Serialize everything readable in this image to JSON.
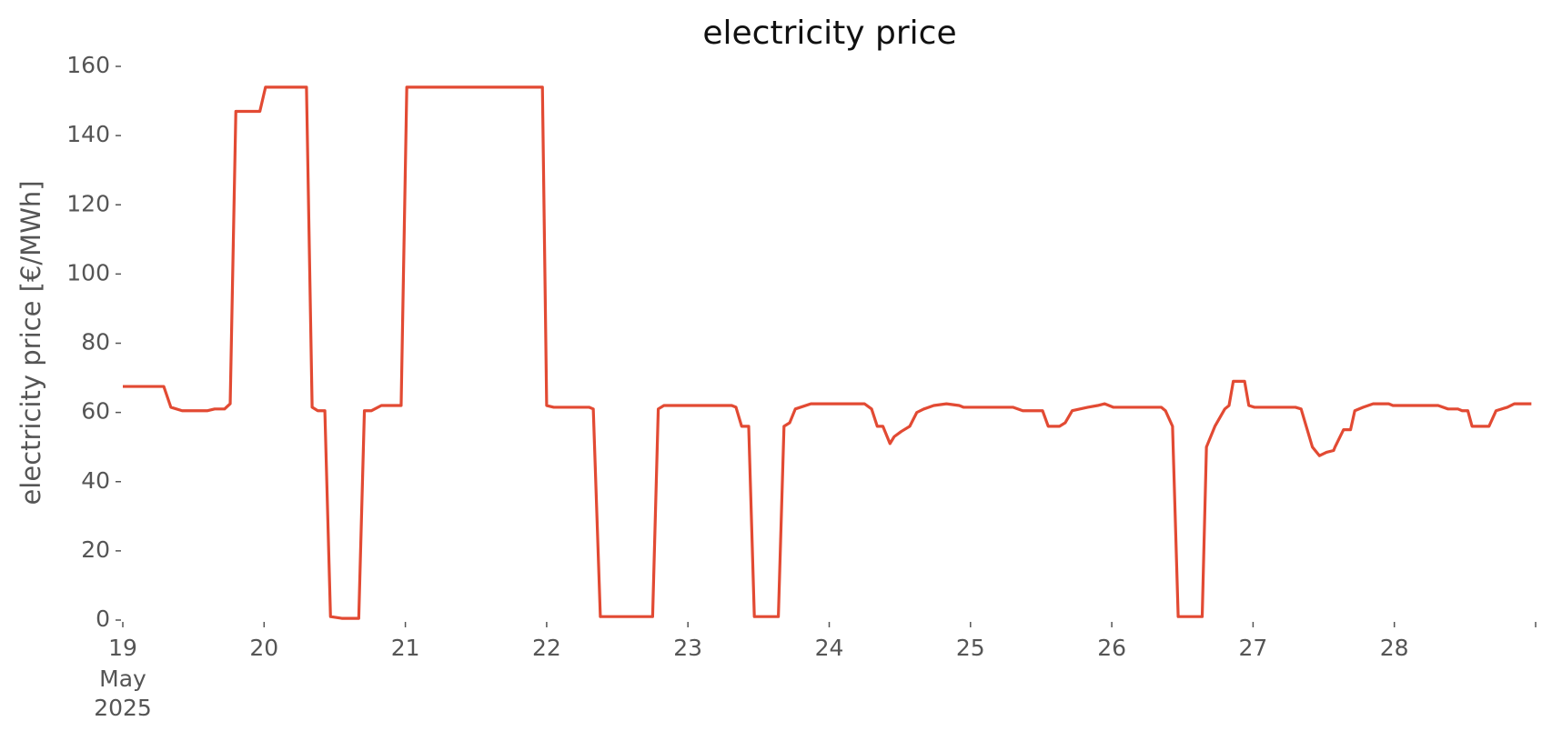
{
  "chart_data": {
    "type": "line",
    "title": "electricity price",
    "ylabel": "electricity price [€/MWh]",
    "x": [
      19.0,
      19.29,
      19.34,
      19.42,
      19.6,
      19.65,
      19.72,
      19.76,
      19.8,
      19.97,
      20.01,
      20.3,
      20.34,
      20.38,
      20.43,
      20.47,
      20.55,
      20.67,
      20.71,
      20.76,
      20.83,
      20.97,
      21.01,
      21.97,
      22.0,
      22.05,
      22.3,
      22.33,
      22.38,
      22.75,
      22.79,
      22.83,
      23.31,
      23.34,
      23.38,
      23.43,
      23.47,
      23.64,
      23.68,
      23.72,
      23.76,
      23.87,
      24.25,
      24.3,
      24.34,
      24.38,
      24.43,
      24.46,
      24.51,
      24.57,
      24.62,
      24.67,
      24.74,
      24.83,
      24.92,
      24.95,
      25.3,
      25.37,
      25.51,
      25.55,
      25.63,
      25.67,
      25.72,
      25.83,
      25.9,
      25.95,
      26.01,
      26.35,
      26.38,
      26.43,
      26.47,
      26.64,
      26.67,
      26.73,
      26.8,
      26.83,
      26.86,
      26.94,
      26.97,
      27.01,
      27.3,
      27.34,
      27.42,
      27.47,
      27.52,
      27.57,
      27.58,
      27.64,
      27.69,
      27.72,
      27.78,
      27.85,
      27.96,
      27.99,
      28.31,
      28.38,
      28.45,
      28.48,
      28.52,
      28.55,
      28.67,
      28.72,
      28.8,
      28.85,
      28.97
    ],
    "series": [
      {
        "name": "electricity price",
        "color": "#e24a33",
        "values": [
          67.5,
          67.5,
          61.5,
          60.5,
          60.5,
          61,
          61,
          62.5,
          147,
          147,
          154,
          154,
          61.5,
          60.5,
          60.5,
          1,
          0.5,
          0.5,
          60.5,
          60.5,
          62,
          62,
          154,
          154,
          62,
          61.5,
          61.5,
          61,
          1,
          1,
          61,
          62,
          62,
          61.5,
          56,
          56,
          1,
          1,
          56,
          57,
          61,
          62.5,
          62.5,
          61,
          56,
          56,
          51,
          53,
          54.5,
          56,
          60,
          61,
          62,
          62.5,
          62,
          61.5,
          61.5,
          60.5,
          60.5,
          56,
          56,
          57,
          60.5,
          61.5,
          62,
          62.5,
          61.5,
          61.5,
          60.5,
          56,
          1,
          1,
          50,
          56,
          61,
          62,
          69,
          69,
          62,
          61.5,
          61.5,
          61,
          50,
          47.5,
          48.5,
          49,
          50,
          55,
          55,
          60.5,
          61.5,
          62.5,
          62.5,
          62,
          62,
          61,
          61,
          60.5,
          60.5,
          56,
          56,
          60.5,
          61.5,
          62.5,
          62.5
        ]
      }
    ],
    "xlim": [
      19,
      29
    ],
    "ylim": [
      0,
      160
    ],
    "xticks": [
      19,
      20,
      21,
      22,
      23,
      24,
      25,
      26,
      27,
      28,
      {
        "value": 29,
        "label": ""
      }
    ],
    "x_date_label": [
      "May",
      "2025"
    ],
    "yticks": [
      0,
      20,
      40,
      60,
      80,
      100,
      120,
      140,
      160
    ],
    "grid": false
  }
}
